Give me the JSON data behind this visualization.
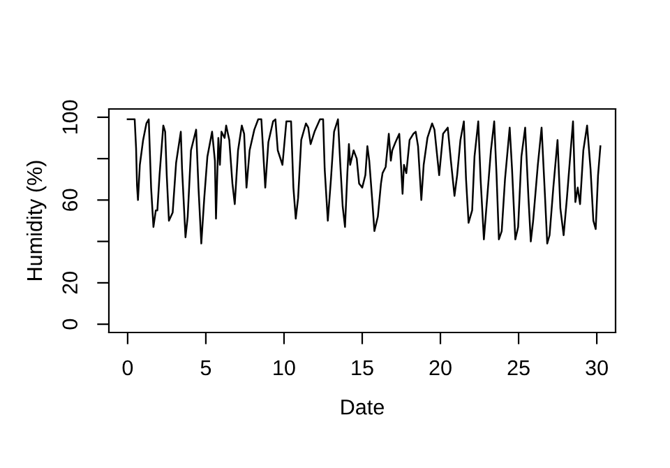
{
  "chart_data": {
    "type": "line",
    "xlabel": "Date",
    "ylabel": "Humidity (%)",
    "x": [
      0,
      0.45,
      0.54,
      0.6,
      0.66,
      0.78,
      0.99,
      1.2,
      1.35,
      1.5,
      1.65,
      1.8,
      1.9,
      2.04,
      2.28,
      2.4,
      2.5,
      2.64,
      2.88,
      3.1,
      3.4,
      3.48,
      3.7,
      3.84,
      4.05,
      4.38,
      4.53,
      4.71,
      4.9,
      5.1,
      5.4,
      5.58,
      5.65,
      5.8,
      5.9,
      6.0,
      6.2,
      6.3,
      6.5,
      6.7,
      6.85,
      7.06,
      7.3,
      7.45,
      7.6,
      7.8,
      8.1,
      8.35,
      8.55,
      8.8,
      9.0,
      9.3,
      9.45,
      9.6,
      9.9,
      10.15,
      10.45,
      10.6,
      10.75,
      10.9,
      11.1,
      11.4,
      11.55,
      11.7,
      11.95,
      12.3,
      12.5,
      12.6,
      12.8,
      13.0,
      13.2,
      13.45,
      13.6,
      13.75,
      13.9,
      14.05,
      14.15,
      14.23,
      14.45,
      14.65,
      14.8,
      15.0,
      15.2,
      15.33,
      15.45,
      15.63,
      15.78,
      16.0,
      16.2,
      16.3,
      16.5,
      16.7,
      16.83,
      16.92,
      17.13,
      17.37,
      17.58,
      17.67,
      17.82,
      18.03,
      18.27,
      18.42,
      18.57,
      18.78,
      18.93,
      19.17,
      19.47,
      19.62,
      19.92,
      20.17,
      20.47,
      20.67,
      20.9,
      21.07,
      21.28,
      21.5,
      21.64,
      21.8,
      22.03,
      22.18,
      22.42,
      22.57,
      22.78,
      22.99,
      23.23,
      23.44,
      23.59,
      23.74,
      23.92,
      24.13,
      24.43,
      24.58,
      24.79,
      24.97,
      25.18,
      25.42,
      25.63,
      25.78,
      25.93,
      26.23,
      26.47,
      26.68,
      26.83,
      26.98,
      27.22,
      27.49,
      27.67,
      27.88,
      28.09,
      28.33,
      28.48,
      28.63,
      28.78,
      28.93,
      29.14,
      29.38,
      29.6,
      29.78,
      29.93,
      30.08,
      30.23
    ],
    "values": [
      99,
      99,
      85,
      67,
      60,
      77,
      89,
      97,
      99,
      66,
      47,
      55,
      55,
      72,
      96,
      93,
      72,
      50,
      54,
      78,
      93,
      75,
      42,
      52,
      84,
      94,
      66,
      39,
      61,
      81,
      93,
      79,
      51,
      90,
      77,
      93,
      90,
      96,
      89,
      68,
      58,
      84,
      96,
      92,
      66,
      84,
      94,
      99,
      99,
      66,
      88,
      98,
      99,
      84,
      77,
      98,
      98,
      66,
      51,
      61,
      89,
      97,
      95,
      87,
      93,
      99,
      99,
      75,
      50,
      70,
      93,
      99,
      77,
      57,
      47,
      73,
      87,
      77,
      84,
      80,
      68,
      66,
      72,
      86,
      79,
      61,
      45,
      52,
      68,
      73,
      76,
      92,
      79,
      84,
      88,
      92,
      63,
      77,
      73,
      89,
      92,
      93,
      86,
      60,
      77,
      90,
      97,
      94,
      72,
      92,
      95,
      79,
      62,
      72,
      89,
      98,
      70,
      49,
      55,
      81,
      98,
      70,
      41,
      61,
      84,
      98,
      72,
      41,
      45,
      70,
      95,
      75,
      41,
      47,
      81,
      95,
      61,
      40,
      50,
      77,
      95,
      63,
      39,
      43,
      66,
      89,
      56,
      43,
      61,
      84,
      98,
      59,
      66,
      58,
      84,
      96,
      75,
      50,
      46,
      72,
      86
    ],
    "color": "#000000",
    "xlim": [
      -1.2,
      31.2
    ],
    "xticks": [
      0,
      5,
      10,
      15,
      20,
      25,
      30
    ],
    "ylim": [
      -4,
      104
    ],
    "yticks": [
      0,
      20,
      {
        "value": 40,
        "label": null
      },
      60,
      {
        "value": 80,
        "label": null
      },
      100
    ],
    "grid": false,
    "legend": false,
    "marker": "none",
    "line_style": "solid"
  }
}
